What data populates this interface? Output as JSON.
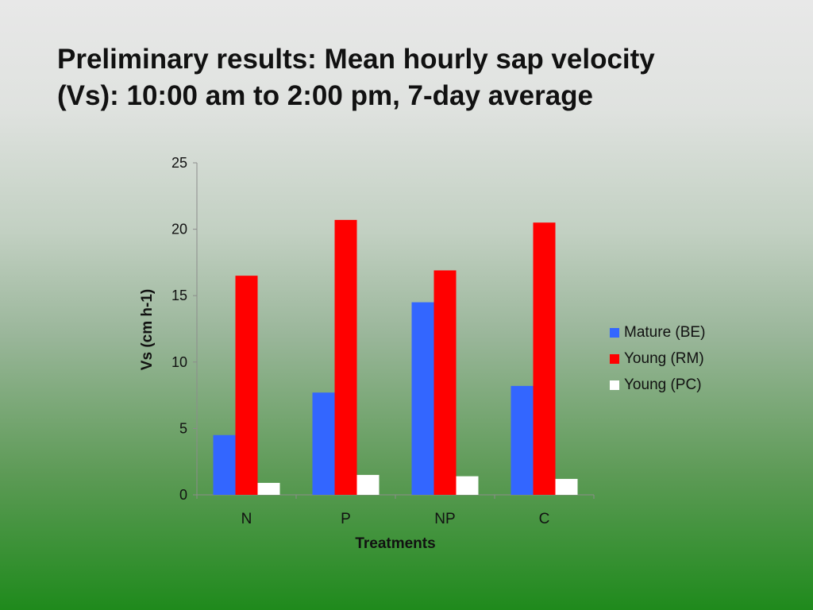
{
  "slide": {
    "title_line1": "Preliminary results: Mean hourly sap velocity",
    "title_line2": "(Vs): 10:00 am to 2:00 pm, 7-day average"
  },
  "chart_data": {
    "type": "bar",
    "categories": [
      "N",
      "P",
      "NP",
      "C"
    ],
    "series": [
      {
        "name": "Mature (BE)",
        "color": "#3366ff",
        "values": [
          4.5,
          7.7,
          14.5,
          8.2
        ]
      },
      {
        "name": "Young (RM)",
        "color": "#ff0000",
        "values": [
          16.5,
          20.7,
          16.9,
          20.5
        ]
      },
      {
        "name": "Young (PC)",
        "color": "#ffffff",
        "values": [
          0.9,
          1.5,
          1.4,
          1.2
        ]
      }
    ],
    "xlabel": "Treatments",
    "ylabel": "Vs (cm h-1)",
    "ylim": [
      0,
      25
    ],
    "yticks": [
      "0",
      "5",
      "10",
      "15",
      "20",
      "25"
    ],
    "grid": false,
    "legend_position": "right"
  }
}
